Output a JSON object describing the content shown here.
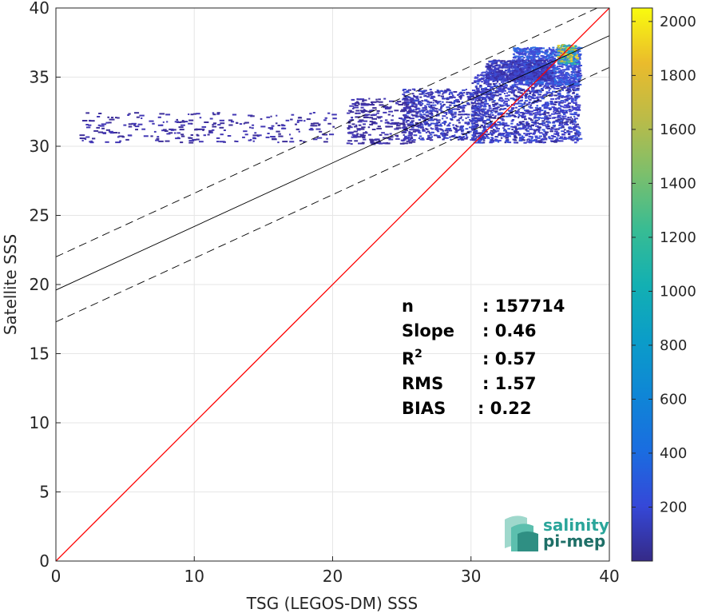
{
  "chart_data": {
    "type": "heatmap",
    "title": "",
    "xlabel": "TSG (LEGOS-DM) SSS",
    "ylabel": "Satellite SSS",
    "xlim": [
      0,
      40
    ],
    "ylim": [
      0,
      40
    ],
    "xticks": [
      "0",
      "10",
      "20",
      "30",
      "40"
    ],
    "yticks": [
      "0",
      "5",
      "10",
      "15",
      "20",
      "25",
      "30",
      "35",
      "40"
    ],
    "grid": true,
    "colorbar": {
      "colormap": "parula",
      "range": [
        0,
        2050
      ],
      "ticks": [
        "200",
        "400",
        "600",
        "800",
        "1000",
        "1200",
        "1400",
        "1600",
        "1800",
        "2000"
      ]
    },
    "lines": [
      {
        "role": "identity",
        "color": "#ff0000",
        "style": "solid",
        "slope": 1.0,
        "intercept": 0
      },
      {
        "role": "regression",
        "color": "#000000",
        "style": "solid",
        "slope": 0.46,
        "intercept": 19.6
      },
      {
        "role": "regression-plus-std",
        "color": "#000000",
        "style": "dashed",
        "slope": 0.46,
        "intercept": 22.0
      },
      {
        "role": "regression-minus-std",
        "color": "#000000",
        "style": "dashed",
        "slope": 0.46,
        "intercept": 17.3
      }
    ],
    "density_clusters": [
      {
        "x": [
          30,
          37.8
        ],
        "y": [
          30.3,
          35.5
        ],
        "density": "medium"
      },
      {
        "x": [
          33,
          37.8
        ],
        "y": [
          34.5,
          37.2
        ],
        "density": "high"
      },
      {
        "x": [
          36.2,
          37.6
        ],
        "y": [
          36.0,
          37.4
        ],
        "density": "peak"
      },
      {
        "x": [
          25,
          31
        ],
        "y": [
          30.5,
          34.2
        ],
        "density": "low"
      },
      {
        "x": [
          21,
          26
        ],
        "y": [
          30.2,
          33.5
        ],
        "density": "sparse"
      },
      {
        "x": [
          1.5,
          20
        ],
        "y": [
          30.3,
          32.5
        ],
        "density": "sparse"
      },
      {
        "x": [
          31,
          35.8
        ],
        "y": [
          34.8,
          36.3
        ],
        "density": "low"
      }
    ]
  },
  "stats": [
    {
      "name": "n",
      "value": ": 157714"
    },
    {
      "name": "Slope",
      "value": ": 0.46"
    },
    {
      "name": "R",
      "sup": "2",
      "value": ": 0.57"
    },
    {
      "name": "RMS",
      "value": ": 1.57"
    },
    {
      "name": "BIAS",
      "value": ": 0.22"
    }
  ],
  "logo": {
    "line1": "salinity",
    "line2": "pi-mep",
    "color1": "#2aa59a",
    "color2": "#1e6f67"
  }
}
